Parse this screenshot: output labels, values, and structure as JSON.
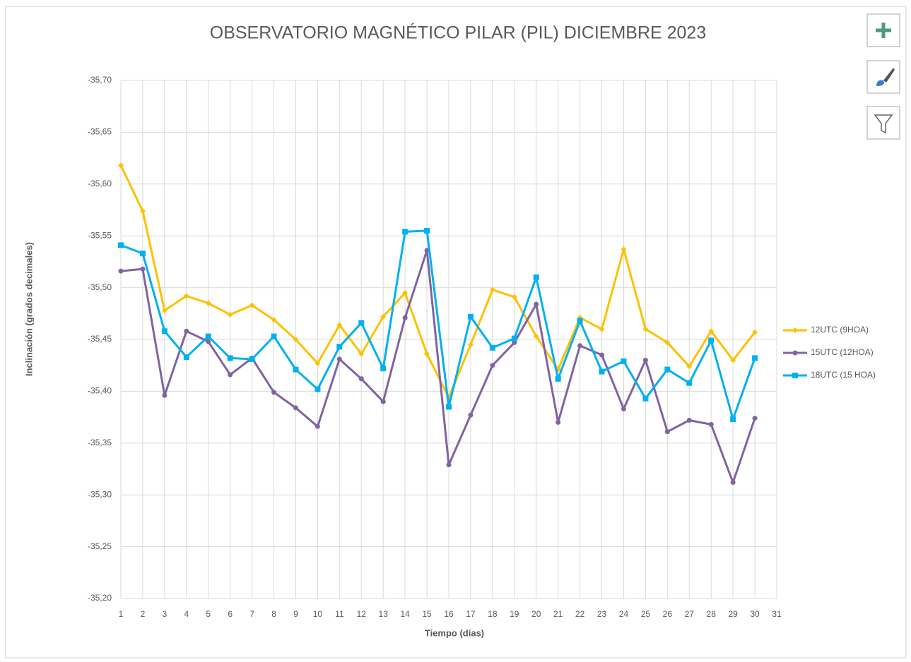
{
  "chart_data": {
    "type": "line",
    "title": "OBSERVATORIO MAGNÉTICO PILAR (PIL) DICIEMBRE 2023",
    "x_label": "Tiempo (días)",
    "y_label": "Inclinación (grados decimales)",
    "x": [
      1,
      2,
      3,
      4,
      5,
      6,
      7,
      8,
      9,
      10,
      11,
      12,
      13,
      14,
      15,
      16,
      17,
      18,
      19,
      20,
      21,
      22,
      23,
      24,
      25,
      26,
      27,
      28,
      29,
      30
    ],
    "xlim": [
      1,
      31
    ],
    "xticks": [
      1,
      2,
      3,
      4,
      5,
      6,
      7,
      8,
      9,
      10,
      11,
      12,
      13,
      14,
      15,
      16,
      17,
      18,
      19,
      20,
      21,
      22,
      23,
      24,
      25,
      26,
      27,
      28,
      29,
      30,
      31
    ],
    "ylim": [
      -35.2,
      -35.7
    ],
    "yticks": [
      {
        "value": -35.7,
        "label": "-35,70"
      },
      {
        "value": -35.65,
        "label": "-35,65"
      },
      {
        "value": -35.6,
        "label": "-35,60"
      },
      {
        "value": -35.55,
        "label": "-35,55"
      },
      {
        "value": -35.5,
        "label": "-35,50"
      },
      {
        "value": -35.45,
        "label": "-35,45"
      },
      {
        "value": -35.4,
        "label": "-35,40"
      },
      {
        "value": -35.35,
        "label": "-35,35"
      },
      {
        "value": -35.3,
        "label": "-35,30"
      },
      {
        "value": -35.25,
        "label": "-35,25"
      },
      {
        "value": -35.2,
        "label": "-35,20"
      }
    ],
    "grid": true,
    "legend": "right",
    "series": [
      {
        "name": "12UTC (9HOA)",
        "color": "#ffc000",
        "marker": "diamond",
        "values": [
          -35.618,
          -35.574,
          -35.478,
          -35.492,
          -35.485,
          -35.474,
          -35.483,
          -35.469,
          -35.45,
          -35.427,
          -35.464,
          -35.436,
          -35.472,
          -35.495,
          -35.436,
          -35.394,
          -35.445,
          -35.498,
          -35.491,
          -35.453,
          -35.421,
          -35.471,
          -35.46,
          -35.537,
          -35.46,
          -35.447,
          -35.424,
          -35.458,
          -35.43,
          -35.457
        ]
      },
      {
        "name": "15UTC (12HOA)",
        "color": "#8064a2",
        "marker": "circle",
        "values": [
          -35.516,
          -35.518,
          -35.396,
          -35.458,
          -35.448,
          -35.416,
          -35.432,
          -35.399,
          -35.384,
          -35.366,
          -35.431,
          -35.412,
          -35.39,
          -35.471,
          -35.536,
          -35.329,
          -35.377,
          -35.425,
          -35.447,
          -35.484,
          -35.37,
          -35.444,
          -35.435,
          -35.383,
          -35.43,
          -35.361,
          -35.372,
          -35.368,
          -35.312,
          -35.374
        ]
      },
      {
        "name": "18UTC (15 HOA)",
        "color": "#00b0f0",
        "marker": "square",
        "values": [
          -35.541,
          -35.533,
          -35.458,
          -35.433,
          -35.453,
          -35.432,
          -35.431,
          -35.453,
          -35.421,
          -35.402,
          -35.443,
          -35.466,
          -35.422,
          -35.554,
          -35.555,
          -35.385,
          -35.472,
          -35.442,
          -35.451,
          -35.51,
          -35.412,
          -35.468,
          -35.419,
          -35.429,
          -35.393,
          -35.421,
          -35.408,
          -35.449,
          -35.373,
          -35.432
        ]
      }
    ]
  }
}
